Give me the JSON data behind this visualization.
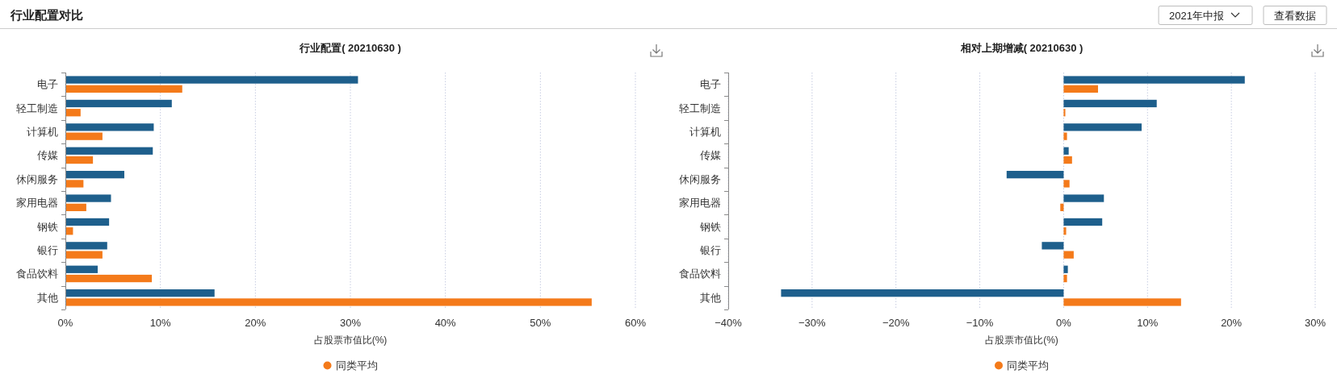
{
  "chart_data": [
    {
      "type": "other",
      "title": "行业配置对比",
      "annotations": [
        "2021年中报",
        "查看数据"
      ]
    },
    {
      "type": "bar",
      "orientation": "horizontal",
      "title": "行业配置( 20210630 )",
      "xlabel": "占股票市值比(%)",
      "categories": [
        "电子",
        "轻工制造",
        "计算机",
        "传媒",
        "休闲服务",
        "家用电器",
        "钢铁",
        "银行",
        "食品饮料",
        "其他"
      ],
      "series": [
        {
          "color": "#1e5f8c",
          "values": [
            30.8,
            11.2,
            9.3,
            9.2,
            6.2,
            4.8,
            4.6,
            4.4,
            3.4,
            15.7
          ]
        },
        {
          "name": "同类平均",
          "color": "#f47a1a",
          "values": [
            12.3,
            1.6,
            3.9,
            2.9,
            1.9,
            2.2,
            0.8,
            3.9,
            9.1,
            55.4
          ]
        }
      ],
      "xlim": [
        0,
        60
      ],
      "xticks": [
        {
          "value": 0,
          "label": "0%"
        },
        {
          "value": 10,
          "label": "10%"
        },
        {
          "value": 20,
          "label": "20%"
        },
        {
          "value": 30,
          "label": "30%"
        },
        {
          "value": 40,
          "label": "40%"
        },
        {
          "value": 50,
          "label": "50%"
        },
        {
          "value": 60,
          "label": "60%"
        }
      ],
      "grid": "x",
      "legend": "bottom"
    },
    {
      "type": "bar",
      "orientation": "horizontal",
      "title": "相对上期增减( 20210630 )",
      "xlabel": "占股票市值比(%)",
      "categories": [
        "电子",
        "轻工制造",
        "计算机",
        "传媒",
        "休闲服务",
        "家用电器",
        "钢铁",
        "银行",
        "食品饮料",
        "其他"
      ],
      "series": [
        {
          "color": "#1e5f8c",
          "values": [
            21.6,
            11.1,
            9.3,
            0.6,
            -6.8,
            4.8,
            4.6,
            -2.6,
            0.5,
            -33.7
          ]
        },
        {
          "name": "同类平均",
          "color": "#f47a1a",
          "values": [
            4.1,
            0.2,
            0.4,
            1.0,
            0.7,
            -0.4,
            0.3,
            1.2,
            0.4,
            14.0
          ]
        }
      ],
      "xlim": [
        -40,
        30
      ],
      "xticks": [
        {
          "value": -40,
          "label": "−40%"
        },
        {
          "value": -30,
          "label": "−30%"
        },
        {
          "value": -20,
          "label": "−20%"
        },
        {
          "value": -10,
          "label": "−10%"
        },
        {
          "value": 0,
          "label": "0%"
        },
        {
          "value": 10,
          "label": "10%"
        },
        {
          "value": 20,
          "label": "20%"
        },
        {
          "value": 30,
          "label": "30%"
        }
      ],
      "grid": "x",
      "legend": "bottom"
    }
  ]
}
